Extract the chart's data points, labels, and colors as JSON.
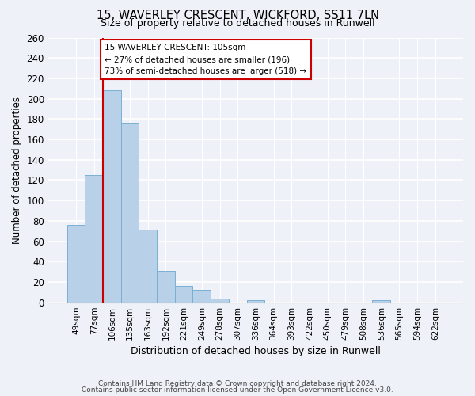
{
  "title_line1": "15, WAVERLEY CRESCENT, WICKFORD, SS11 7LN",
  "title_line2": "Size of property relative to detached houses in Runwell",
  "xlabel": "Distribution of detached houses by size in Runwell",
  "ylabel": "Number of detached properties",
  "annotation_line1": "15 WAVERLEY CRESCENT: 105sqm",
  "annotation_line2": "← 27% of detached houses are smaller (196)",
  "annotation_line3": "73% of semi-detached houses are larger (518) →",
  "bar_labels": [
    "49sqm",
    "77sqm",
    "106sqm",
    "135sqm",
    "163sqm",
    "192sqm",
    "221sqm",
    "249sqm",
    "278sqm",
    "307sqm",
    "336sqm",
    "364sqm",
    "393sqm",
    "422sqm",
    "450sqm",
    "479sqm",
    "508sqm",
    "536sqm",
    "565sqm",
    "594sqm",
    "622sqm"
  ],
  "bar_values": [
    76,
    125,
    208,
    176,
    71,
    31,
    16,
    12,
    4,
    0,
    2,
    0,
    0,
    0,
    0,
    0,
    0,
    2,
    0,
    0,
    0
  ],
  "bar_color": "#b8d0e8",
  "bar_edge_color": "#7aafd4",
  "vline_color": "#cc0000",
  "annotation_box_color": "#cc0000",
  "ylim": [
    0,
    260
  ],
  "yticks": [
    0,
    20,
    40,
    60,
    80,
    100,
    120,
    140,
    160,
    180,
    200,
    220,
    240,
    260
  ],
  "footer_line1": "Contains HM Land Registry data © Crown copyright and database right 2024.",
  "footer_line2": "Contains public sector information licensed under the Open Government Licence v3.0.",
  "bg_color": "#eef2f8",
  "plot_bg_color": "#eef2f8"
}
